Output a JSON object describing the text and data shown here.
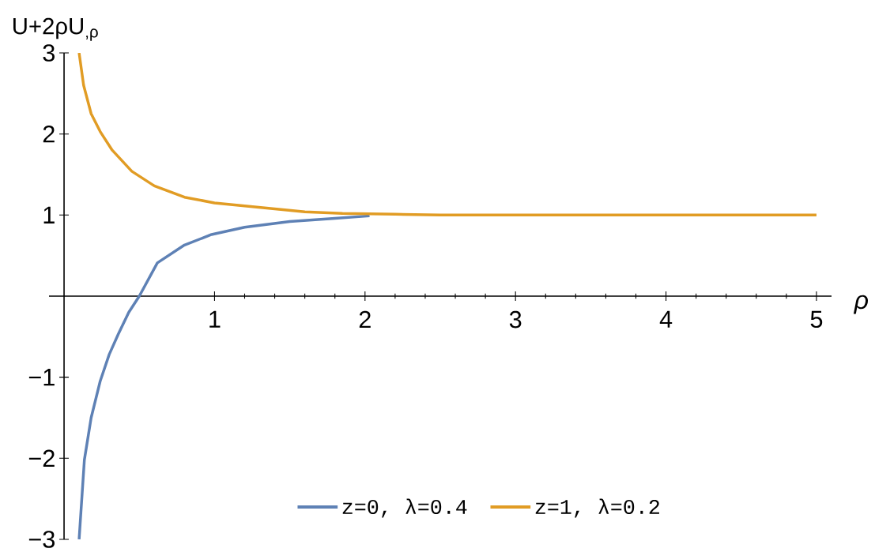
{
  "chart_data": {
    "type": "line",
    "xlabel": "ρ",
    "ylabel": "U+2ρU$_{,ρ}$",
    "xlim": [
      -0.1,
      5.1
    ],
    "ylim": [
      -3,
      3
    ],
    "xticks": [
      1,
      2,
      3,
      4,
      5
    ],
    "yticks": [
      {
        "value": -3,
        "label": "−3"
      },
      {
        "value": -2,
        "label": "−2"
      },
      {
        "value": -1,
        "label": "−1"
      },
      1,
      2,
      3
    ],
    "legend": "bottom",
    "series": [
      {
        "name": "z=0, λ=0.4",
        "color": "#5e81b5",
        "x": [
          0.1,
          0.135,
          0.18,
          0.24,
          0.3,
          0.36,
          0.43,
          0.5,
          0.62,
          0.8,
          0.98,
          1.2,
          1.5,
          1.8,
          2.03
        ],
        "values": [
          -3,
          -2.02,
          -1.5,
          -1.05,
          -0.72,
          -0.47,
          -0.2,
          0,
          0.41,
          0.63,
          0.76,
          0.85,
          0.92,
          0.96,
          0.99
        ]
      },
      {
        "name": "z=1, λ=0.2",
        "color": "#e19c24",
        "x": [
          0.1,
          0.13,
          0.18,
          0.24,
          0.32,
          0.45,
          0.6,
          0.8,
          1.0,
          1.32,
          1.6,
          1.85,
          2.2,
          2.5,
          3,
          4,
          5
        ],
        "values": [
          3,
          2.6,
          2.25,
          2.03,
          1.8,
          1.54,
          1.36,
          1.22,
          1.15,
          1.09,
          1.04,
          1.02,
          1.01,
          1,
          1,
          1,
          1
        ]
      }
    ]
  }
}
